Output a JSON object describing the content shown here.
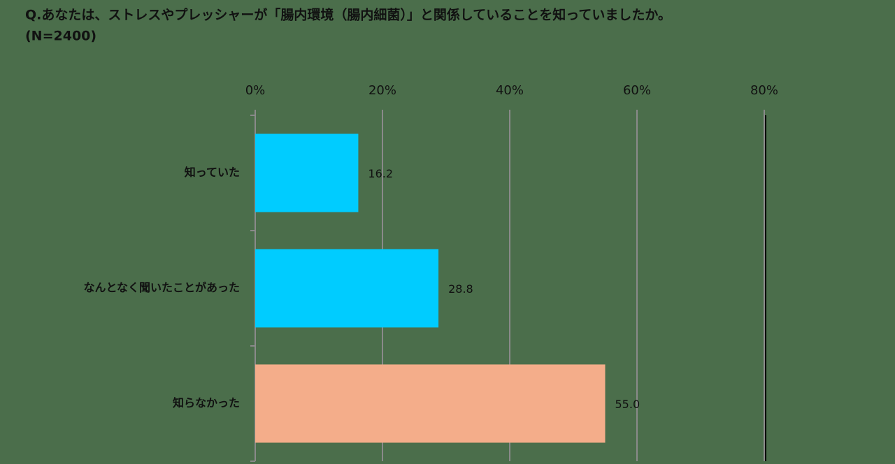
{
  "chart_data": {
    "type": "hbar",
    "title": "Q.あなたは、ストレスやプレッシャーが「腸内環境（腸内細菌）」と関係していることを知っていましたか。",
    "subtitle": "(N=2400)",
    "categories": [
      "知っていた",
      "なんとなく聞いたことがあった",
      "知らなかった"
    ],
    "values": [
      16.2,
      28.8,
      55.0
    ],
    "value_labels": [
      "16.2",
      "28.8",
      "55.0"
    ],
    "colors": [
      "#00ccff",
      "#00ccff",
      "#f4ad8a"
    ],
    "xlim": [
      0,
      80
    ],
    "xticks": [
      {
        "value": 0,
        "label": "0%"
      },
      {
        "value": 20,
        "label": "20%"
      },
      {
        "value": 40,
        "label": "40%"
      },
      {
        "value": 60,
        "label": "60%"
      },
      {
        "value": 80,
        "label": "80%"
      }
    ],
    "grid": true
  }
}
